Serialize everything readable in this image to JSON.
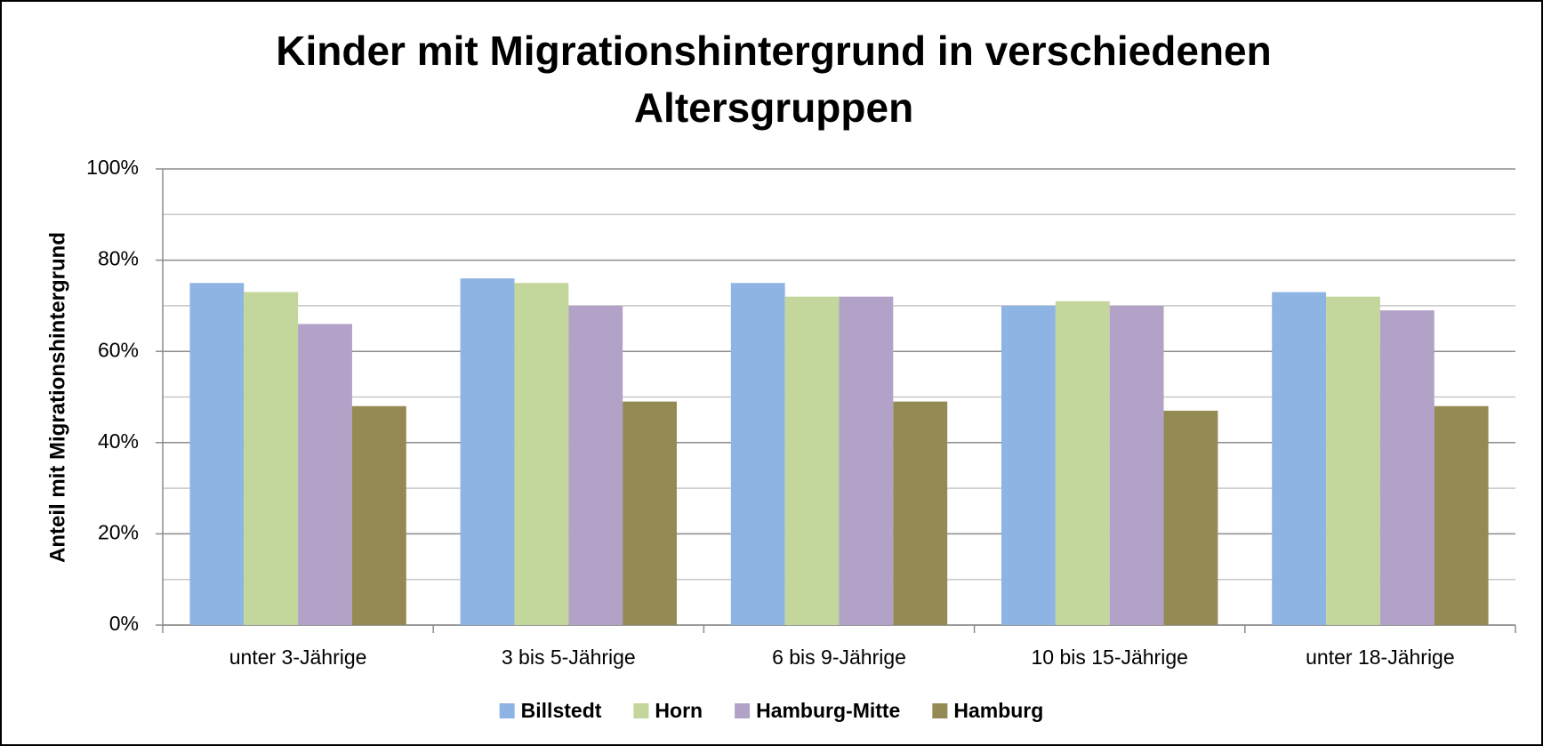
{
  "chart_data": {
    "type": "bar",
    "title": [
      "Kinder mit Migrationshintergrund in verschiedenen",
      "Altersgruppen"
    ],
    "y_label": "Anteil mit Migrationshintergrund",
    "categories": [
      "unter 3-Jährige",
      "3 bis 5-Jährige",
      "6 bis 9-Jährige",
      "10 bis 15-Jährige",
      "unter 18-Jährige"
    ],
    "series": [
      {
        "name": "Billstedt",
        "color": "#8eb4e3",
        "values": [
          75,
          76,
          75,
          70,
          73
        ]
      },
      {
        "name": "Horn",
        "color": "#c3d69b",
        "values": [
          73,
          75,
          72,
          71,
          72
        ]
      },
      {
        "name": "Hamburg-Mitte",
        "color": "#b3a2c7",
        "values": [
          66,
          70,
          72,
          70,
          69
        ]
      },
      {
        "name": "Hamburg",
        "color": "#948a54",
        "values": [
          48,
          49,
          49,
          47,
          48
        ]
      }
    ],
    "ylim": [
      0,
      100
    ],
    "yticks": [
      {
        "value": 0,
        "label": "0%"
      },
      {
        "value": 20,
        "label": "20%"
      },
      {
        "value": 40,
        "label": "40%"
      },
      {
        "value": 60,
        "label": "60%"
      },
      {
        "value": 80,
        "label": "80%"
      },
      {
        "value": 100,
        "label": "100%"
      }
    ],
    "yminorticks": [
      10,
      30,
      50,
      70,
      90
    ],
    "grid": true,
    "legend": "bottom"
  }
}
